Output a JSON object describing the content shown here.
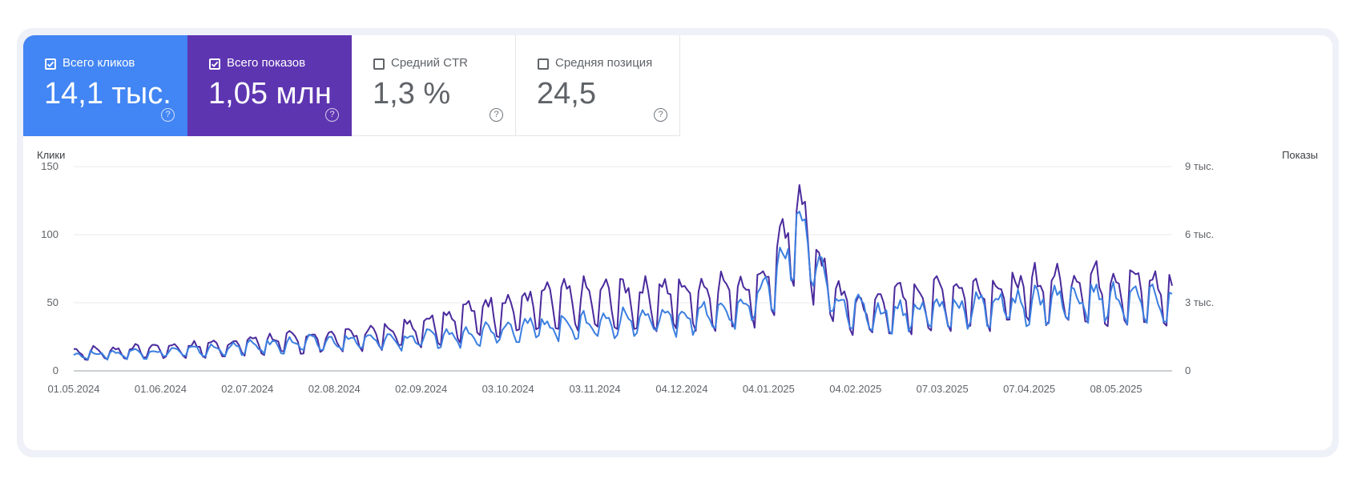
{
  "colors": {
    "clicks": "#4285f4",
    "impressions": "#5e35b1",
    "clicks_line": "#3b7fe0",
    "impressions_line": "#4a2a9c"
  },
  "metrics": [
    {
      "label": "Всего кликов",
      "value": "14,1 тыс.",
      "checked": true
    },
    {
      "label": "Всего показов",
      "value": "1,05 млн",
      "checked": true
    },
    {
      "label": "Средний CTR",
      "value": "1,3 %",
      "checked": false
    },
    {
      "label": "Средняя позиция",
      "value": "24,5",
      "checked": false
    }
  ],
  "help_icon": "?",
  "chart_data": {
    "type": "line",
    "left_axis_label": "Клики",
    "right_axis_label": "Показы",
    "left_ticks": [
      "0",
      "50",
      "100",
      "150"
    ],
    "right_ticks": [
      "0",
      "3 тыс.",
      "6 тыс.",
      "9 тыс."
    ],
    "y_left_lim": [
      0,
      150
    ],
    "y_right_lim": [
      0,
      9000
    ],
    "x_ticks": [
      "01.05.2024",
      "01.06.2024",
      "02.07.2024",
      "02.08.2024",
      "02.09.2024",
      "03.10.2024",
      "03.11.2024",
      "04.12.2024",
      "04.01.2025",
      "04.02.2025",
      "07.03.2025",
      "07.04.2025",
      "08.05.2025"
    ],
    "x_range": [
      "01.05.2024",
      "28.05.2025"
    ],
    "grid": true,
    "series": [
      {
        "name": "Всего показов",
        "axis": "right",
        "weekly_avg": [
          750,
          780,
          800,
          850,
          900,
          930,
          950,
          1000,
          1050,
          1150,
          1200,
          1250,
          1300,
          1350,
          1400,
          1500,
          1600,
          1750,
          1900,
          2100,
          2300,
          2500,
          2600,
          2700,
          2800,
          2850,
          2900,
          2950,
          3000,
          3000,
          3050,
          3100,
          3150,
          3200,
          3300,
          3500,
          4500,
          6800,
          4200,
          3000,
          2500,
          2600,
          2800,
          2900,
          3000,
          3100,
          3150,
          3200,
          3300,
          3350,
          3400,
          3450,
          3500,
          3450,
          3400,
          3300,
          3200,
          3100
        ]
      },
      {
        "name": "Всего кликов",
        "axis": "left",
        "weekly_avg": [
          11,
          12,
          12,
          13,
          13,
          14,
          14,
          15,
          16,
          17,
          18,
          19,
          20,
          20,
          21,
          21,
          22,
          22,
          23,
          24,
          26,
          28,
          30,
          31,
          32,
          32,
          33,
          34,
          35,
          36,
          37,
          38,
          39,
          40,
          44,
          50,
          70,
          100,
          68,
          48,
          42,
          40,
          41,
          42,
          43,
          44,
          45,
          46,
          47,
          48,
          49,
          50,
          51,
          50,
          49,
          48,
          47,
          47
        ]
      }
    ]
  }
}
